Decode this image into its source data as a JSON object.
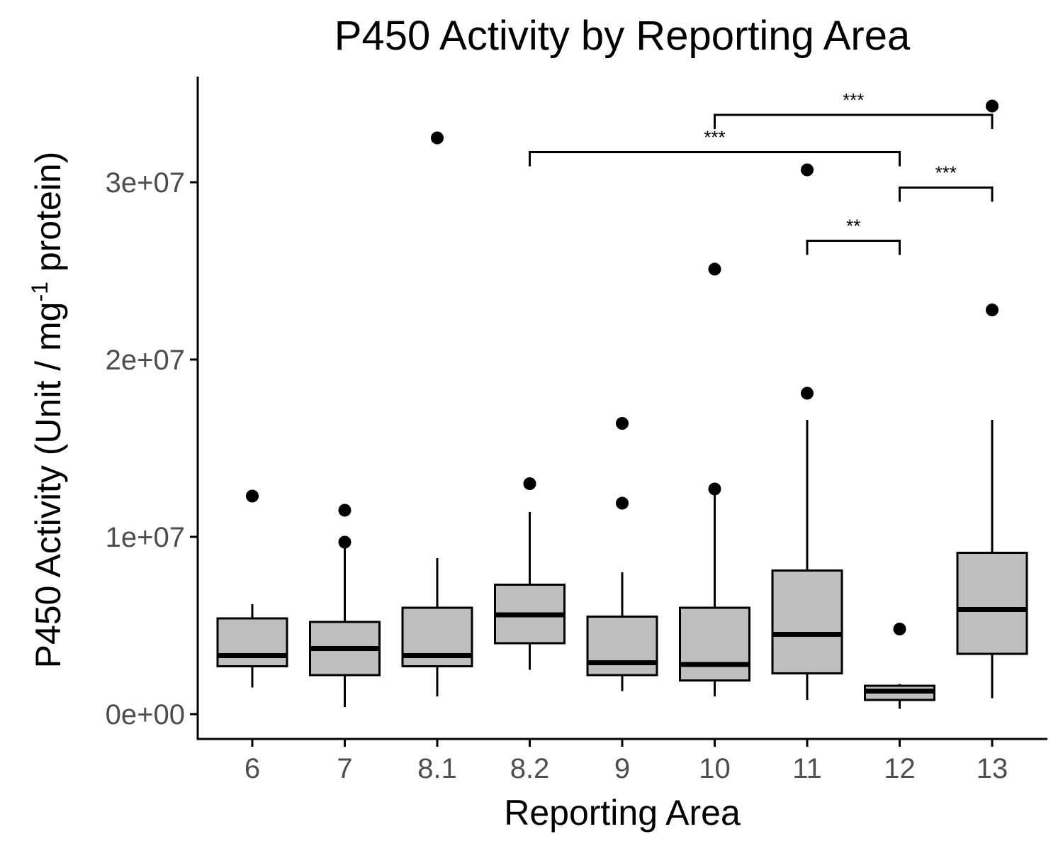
{
  "chart_data": {
    "type": "boxplot",
    "title": "P450 Activity by Reporting Area",
    "xlabel": "Reporting Area",
    "ylabel": {
      "main": "P450 Activity (Unit / mg",
      "superscript": "-1",
      "suffix": " protein)"
    },
    "ylim": [
      -1400000,
      36000000
    ],
    "y_ticks": [
      0,
      10000000,
      20000000,
      30000000
    ],
    "y_tick_labels": [
      "0e+00",
      "1e+07",
      "2e+07",
      "3e+07"
    ],
    "grid": false,
    "box_fill": "#bebebe",
    "categories": [
      "6",
      "7",
      "8.1",
      "8.2",
      "9",
      "10",
      "11",
      "12",
      "13"
    ],
    "boxes": [
      {
        "category": "6",
        "whisker_low": 1500000,
        "q1": 2700000,
        "median": 3300000,
        "q3": 5400000,
        "whisker_high": 6200000,
        "outliers": [
          12300000
        ]
      },
      {
        "category": "7",
        "whisker_low": 400000,
        "q1": 2200000,
        "median": 3700000,
        "q3": 5200000,
        "whisker_high": 9700000,
        "outliers": [
          11500000,
          9700000
        ]
      },
      {
        "category": "8.1",
        "whisker_low": 1000000,
        "q1": 2700000,
        "median": 3300000,
        "q3": 6000000,
        "whisker_high": 8800000,
        "outliers": [
          32500000
        ]
      },
      {
        "category": "8.2",
        "whisker_low": 2500000,
        "q1": 4000000,
        "median": 5600000,
        "q3": 7300000,
        "whisker_high": 11400000,
        "outliers": [
          13000000
        ]
      },
      {
        "category": "9",
        "whisker_low": 1300000,
        "q1": 2200000,
        "median": 2900000,
        "q3": 5500000,
        "whisker_high": 8000000,
        "outliers": [
          16400000,
          11900000
        ]
      },
      {
        "category": "10",
        "whisker_low": 1000000,
        "q1": 1900000,
        "median": 2800000,
        "q3": 6000000,
        "whisker_high": 12500000,
        "outliers": [
          25100000,
          12700000
        ]
      },
      {
        "category": "11",
        "whisker_low": 800000,
        "q1": 2300000,
        "median": 4500000,
        "q3": 8100000,
        "whisker_high": 16600000,
        "outliers": [
          30700000,
          18100000
        ]
      },
      {
        "category": "12",
        "whisker_low": 300000,
        "q1": 800000,
        "median": 1300000,
        "q3": 1600000,
        "whisker_high": 1700000,
        "outliers": [
          4800000
        ]
      },
      {
        "category": "13",
        "whisker_low": 900000,
        "q1": 3400000,
        "median": 5900000,
        "q3": 9100000,
        "whisker_high": 16600000,
        "outliers": [
          34300000,
          22800000
        ]
      }
    ],
    "significance": [
      {
        "from": "10",
        "to": "13",
        "label": "***",
        "y": 33800000
      },
      {
        "from": "8.2",
        "to": "12",
        "label": "***",
        "y": 31700000
      },
      {
        "from": "12",
        "to": "13",
        "label": "***",
        "y": 29700000
      },
      {
        "from": "11",
        "to": "12",
        "label": "**",
        "y": 26700000
      }
    ]
  }
}
